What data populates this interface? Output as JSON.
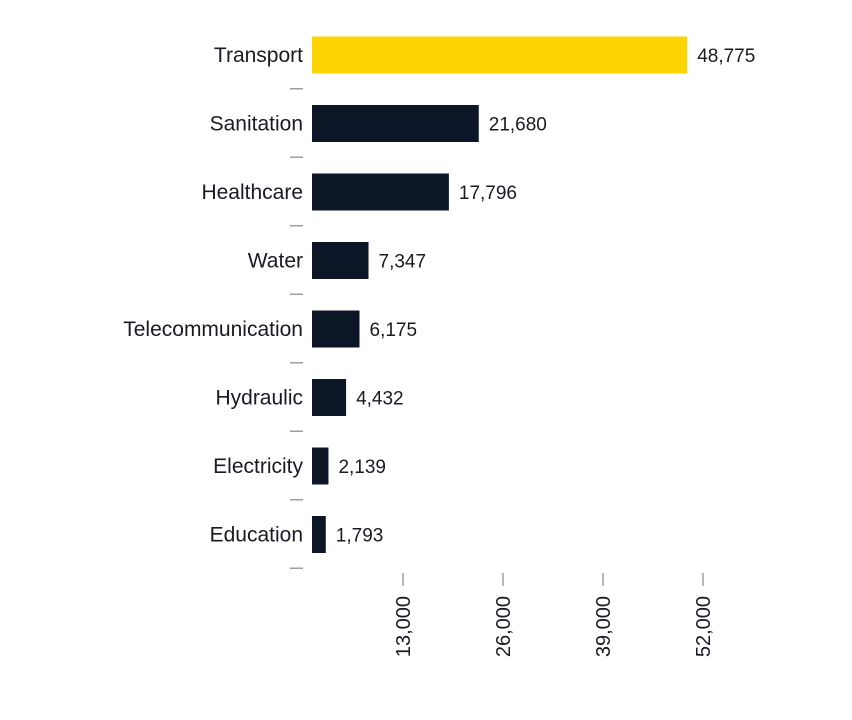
{
  "chart_data": {
    "type": "bar",
    "orientation": "horizontal",
    "categories": [
      "Transport",
      "Sanitation",
      "Healthcare",
      "Water",
      "Telecommunication",
      "Hydraulic",
      "Electricity",
      "Education"
    ],
    "values": [
      48775,
      21680,
      17796,
      7347,
      6175,
      4432,
      2139,
      1793
    ],
    "value_labels": [
      "48,775",
      "21,680",
      "17,796",
      "7,347",
      "6,175",
      "4,432",
      "2,139",
      "1,793"
    ],
    "x_ticks": [
      13000,
      26000,
      39000,
      52000
    ],
    "x_tick_labels": [
      "13,000",
      "26,000",
      "39,000",
      "52,000"
    ],
    "xlim": [
      0,
      52000
    ],
    "grid": false,
    "colors": {
      "highlight": "#ffd500",
      "bar": "#0d1626",
      "tick": "#9aa0a6",
      "text": "#1a1a24"
    },
    "highlight_index": 0
  }
}
